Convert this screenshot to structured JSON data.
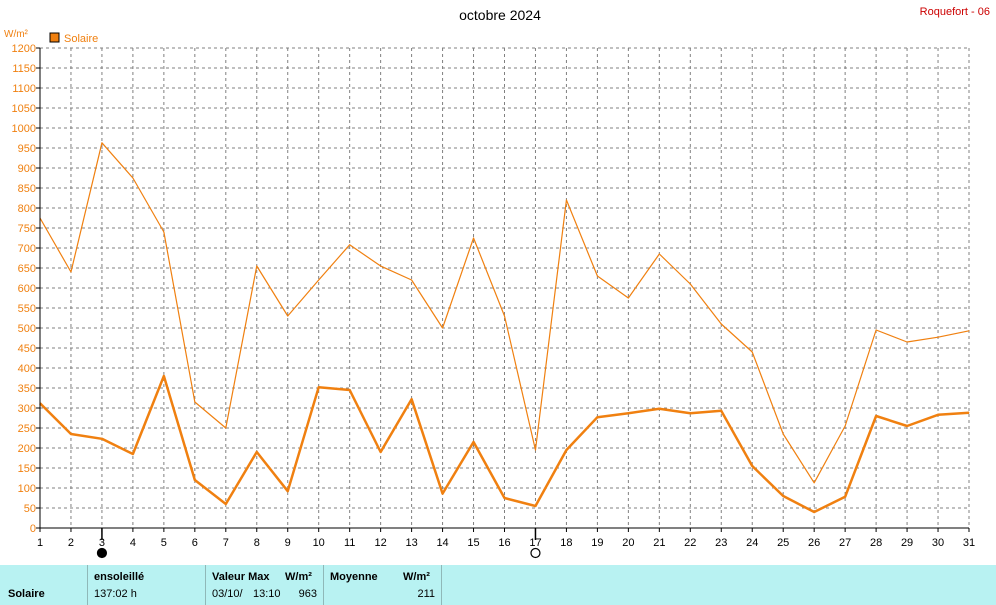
{
  "title": "octobre 2024",
  "station": "Roquefort - 06",
  "unit": "W/m²",
  "colors": {
    "series": "#f08010",
    "grid": "#808080",
    "footer_bg": "#b8f2f2",
    "station": "#cc0000"
  },
  "chart_data": {
    "type": "line",
    "title": "octobre 2024",
    "ylabel": "W/m²",
    "ylim": [
      0,
      1200
    ],
    "ytick_step": 50,
    "grid": true,
    "legend_position": "top-left",
    "x": [
      1,
      2,
      3,
      4,
      5,
      6,
      7,
      8,
      9,
      10,
      11,
      12,
      13,
      14,
      15,
      16,
      17,
      18,
      19,
      20,
      21,
      22,
      23,
      24,
      25,
      26,
      27,
      28,
      29,
      30,
      31
    ],
    "series": [
      {
        "name": "Solaire",
        "style": "max",
        "values": [
          775,
          640,
          963,
          875,
          740,
          315,
          250,
          655,
          530,
          620,
          708,
          655,
          620,
          500,
          725,
          530,
          195,
          820,
          630,
          575,
          685,
          610,
          510,
          440,
          235,
          113,
          255,
          495,
          465,
          477,
          493
        ]
      },
      {
        "name": "Solaire",
        "style": "mean",
        "values": [
          312,
          235,
          223,
          185,
          380,
          120,
          60,
          190,
          92,
          352,
          345,
          190,
          322,
          86,
          215,
          75,
          55,
          195,
          277,
          287,
          298,
          287,
          293,
          155,
          80,
          40,
          78,
          280,
          255,
          283,
          288
        ]
      }
    ],
    "moon_markers": [
      {
        "day": 3,
        "phase": "new"
      },
      {
        "day": 17,
        "phase": "full"
      }
    ]
  },
  "footer": {
    "row_label": "Solaire",
    "sunshine_header": "ensoleillé",
    "sunshine_value": "137:02 h",
    "max_header": "Valeur Max",
    "max_unit": "W/m²",
    "max_date": "03/10/",
    "max_time": "13:10",
    "max_value": "963",
    "mean_header": "Moyenne",
    "mean_unit": "W/m²",
    "mean_value": "211"
  }
}
